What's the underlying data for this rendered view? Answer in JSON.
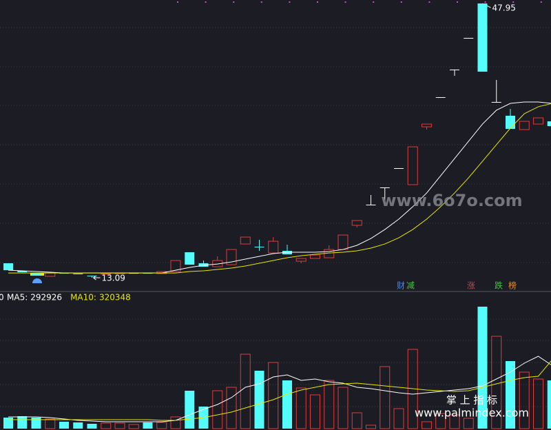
{
  "chart_data": {
    "type": "candlestick",
    "ylim": [
      11.43,
      48.39
    ],
    "up_color": "#e03a3a",
    "down_color": "#54fcfc",
    "flat_color": "#ffffff",
    "candles": {
      "open": [
        14.93,
        13.97,
        13.7,
        13.27,
        13.7,
        13.62,
        13.35,
        13.6,
        13.68,
        13.7,
        13.7,
        13.62,
        13.88,
        16.33,
        14.93,
        14.49,
        14.75,
        17.38,
        17.03,
        16.24,
        16.51,
        15.19,
        15.54,
        15.63,
        16.68,
        19.75,
        22.38,
        24.57,
        27.02,
        24.92,
        32.27,
        36.04,
        39.55,
        43.57,
        47.95,
        35.43,
        33.68,
        31.92,
        32.62,
        32.97
      ],
      "close": [
        14.05,
        13.79,
        13.35,
        13.7,
        13.62,
        13.6,
        13.27,
        13.62,
        13.7,
        13.7,
        13.62,
        13.88,
        15.28,
        14.75,
        14.49,
        15.28,
        16.68,
        18.26,
        17.0,
        17.73,
        16.07,
        15.54,
        15.98,
        16.68,
        18.52,
        20.36,
        22.38,
        24.57,
        27.02,
        29.73,
        32.62,
        36.04,
        39.55,
        43.57,
        39.28,
        35.43,
        32.01,
        32.97,
        33.41,
        32.36
      ],
      "high": [
        14.93,
        13.97,
        13.7,
        13.7,
        13.7,
        13.62,
        13.35,
        13.62,
        13.7,
        13.7,
        13.7,
        13.88,
        15.28,
        16.33,
        15.28,
        15.81,
        16.68,
        18.26,
        17.91,
        18.26,
        17.29,
        15.54,
        15.98,
        17.21,
        18.52,
        20.36,
        23.6,
        24.57,
        27.02,
        29.73,
        32.62,
        36.04,
        39.55,
        43.57,
        47.95,
        38.23,
        34.55,
        32.97,
        33.41,
        32.97
      ],
      "low": [
        14.05,
        13.79,
        13.35,
        13.27,
        13.62,
        13.6,
        13.09,
        13.6,
        13.68,
        13.7,
        13.62,
        13.62,
        13.88,
        14.75,
        14.49,
        14.49,
        14.75,
        17.38,
        16.51,
        16.24,
        16.07,
        14.93,
        15.54,
        15.63,
        16.68,
        19.48,
        22.38,
        22.99,
        27.02,
        24.92,
        31.91,
        36.04,
        38.76,
        43.57,
        39.28,
        35.43,
        32.01,
        31.92,
        32.62,
        32.36
      ]
    },
    "price_ma": [
      {
        "color": "#ffffff",
        "values": [
          14.05,
          13.97,
          13.88,
          13.79,
          13.7,
          13.7,
          13.7,
          13.7,
          13.7,
          13.7,
          13.7,
          13.7,
          14.05,
          14.4,
          14.67,
          14.84,
          15.1,
          15.46,
          15.81,
          16.16,
          16.33,
          16.33,
          16.33,
          16.42,
          16.68,
          17.21,
          18.08,
          19.22,
          20.54,
          22.11,
          23.86,
          26.05,
          28.24,
          30.43,
          32.62,
          34.38,
          35.25,
          35.43,
          35.43,
          35.25
        ]
      },
      {
        "color": "#e8e800",
        "values": [
          13.7,
          13.7,
          13.7,
          13.7,
          13.7,
          13.7,
          13.7,
          13.7,
          13.7,
          13.7,
          13.7,
          13.7,
          13.7,
          13.88,
          13.97,
          14.14,
          14.32,
          14.58,
          14.93,
          15.28,
          15.63,
          15.89,
          16.07,
          16.24,
          16.33,
          16.51,
          16.86,
          17.38,
          18.17,
          19.22,
          20.54,
          22.11,
          23.86,
          25.79,
          27.89,
          30.0,
          32.1,
          33.94,
          34.82,
          35.25
        ]
      }
    ],
    "volume": {
      "ylim": [
        0,
        633600
      ],
      "values": [
        51200,
        57600,
        51200,
        44800,
        32000,
        28800,
        22400,
        25600,
        25600,
        19200,
        28800,
        28800,
        54400,
        176000,
        102400,
        176000,
        192000,
        345600,
        268800,
        307200,
        224000,
        188800,
        156800,
        224000,
        192000,
        73600,
        16000,
        288000,
        92800,
        368000,
        32000,
        70400,
        64000,
        48000,
        566400,
        428800,
        313600,
        262400,
        230400,
        224000
      ],
      "ma": [
        {
          "name": "MA5:",
          "color": "#ffffff",
          "values": [
            54400,
            54400,
            54400,
            51200,
            44800,
            38400,
            35200,
            32000,
            32000,
            32000,
            32000,
            32000,
            38400,
            64000,
            89600,
            112000,
            144000,
            192000,
            208000,
            240000,
            249600,
            224000,
            230400,
            217600,
            211200,
            192000,
            185600,
            176000,
            166400,
            160000,
            166400,
            172800,
            179200,
            185600,
            198400,
            230400,
            262400,
            304000,
            336000,
            292926
          ]
        },
        {
          "name": "MA10:",
          "color": "#e8e800",
          "values": [
            41600,
            41600,
            41600,
            41600,
            41600,
            41600,
            41600,
            41600,
            41600,
            41600,
            41600,
            38400,
            38400,
            44800,
            51200,
            64000,
            76800,
            96000,
            115200,
            134400,
            160000,
            179200,
            192000,
            204800,
            208000,
            211200,
            204800,
            198400,
            192000,
            185600,
            179200,
            176000,
            172800,
            176000,
            192000,
            208000,
            224000,
            236800,
            243200,
            320348
          ]
        }
      ]
    },
    "cut_label": "0",
    "annotations": [
      {
        "text": "财",
        "color": "#3a8cff"
      },
      {
        "text": "减",
        "color": "#40c040"
      },
      {
        "text": "涨",
        "color": "#e03a3a"
      },
      {
        "text": "跌",
        "color": "#40c040"
      },
      {
        "text": "榜",
        "color": "#e0902a"
      }
    ],
    "watermarks": [
      "www.6o7o.com",
      "掌 上 指 标",
      "www.palmindex.com"
    ]
  }
}
